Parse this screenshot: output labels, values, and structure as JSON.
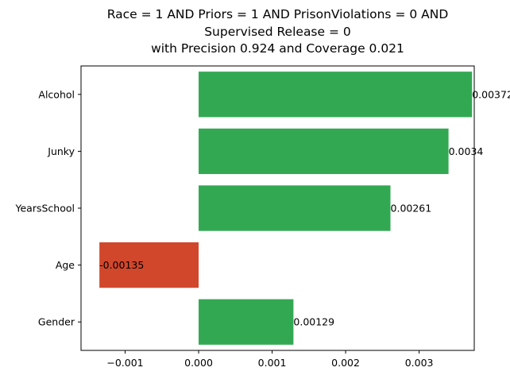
{
  "chart_data": {
    "type": "bar",
    "orientation": "horizontal",
    "title_lines": [
      "Race = 1 AND Priors = 1 AND PrisonViolations = 0 AND",
      "Supervised Release = 0",
      "with Precision 0.924 and Coverage 0.021"
    ],
    "categories": [
      "Alcohol",
      "Junky",
      "YearsSchool",
      "Age",
      "Gender"
    ],
    "values": [
      0.00372,
      0.0034,
      0.00261,
      -0.00135,
      0.00129
    ],
    "value_labels": [
      "0.00372",
      "0.0034",
      "0.00261",
      "-0.00135",
      "0.00129"
    ],
    "xlim": [
      -0.0016,
      0.00375
    ],
    "x_ticks": [
      -0.001,
      0.0,
      0.001,
      0.002,
      0.003
    ],
    "x_tick_labels": [
      "−0.001",
      "0.000",
      "0.001",
      "0.002",
      "0.003"
    ],
    "grid": false,
    "colors": {
      "positive": "#33a853",
      "negative": "#d1472c"
    }
  }
}
